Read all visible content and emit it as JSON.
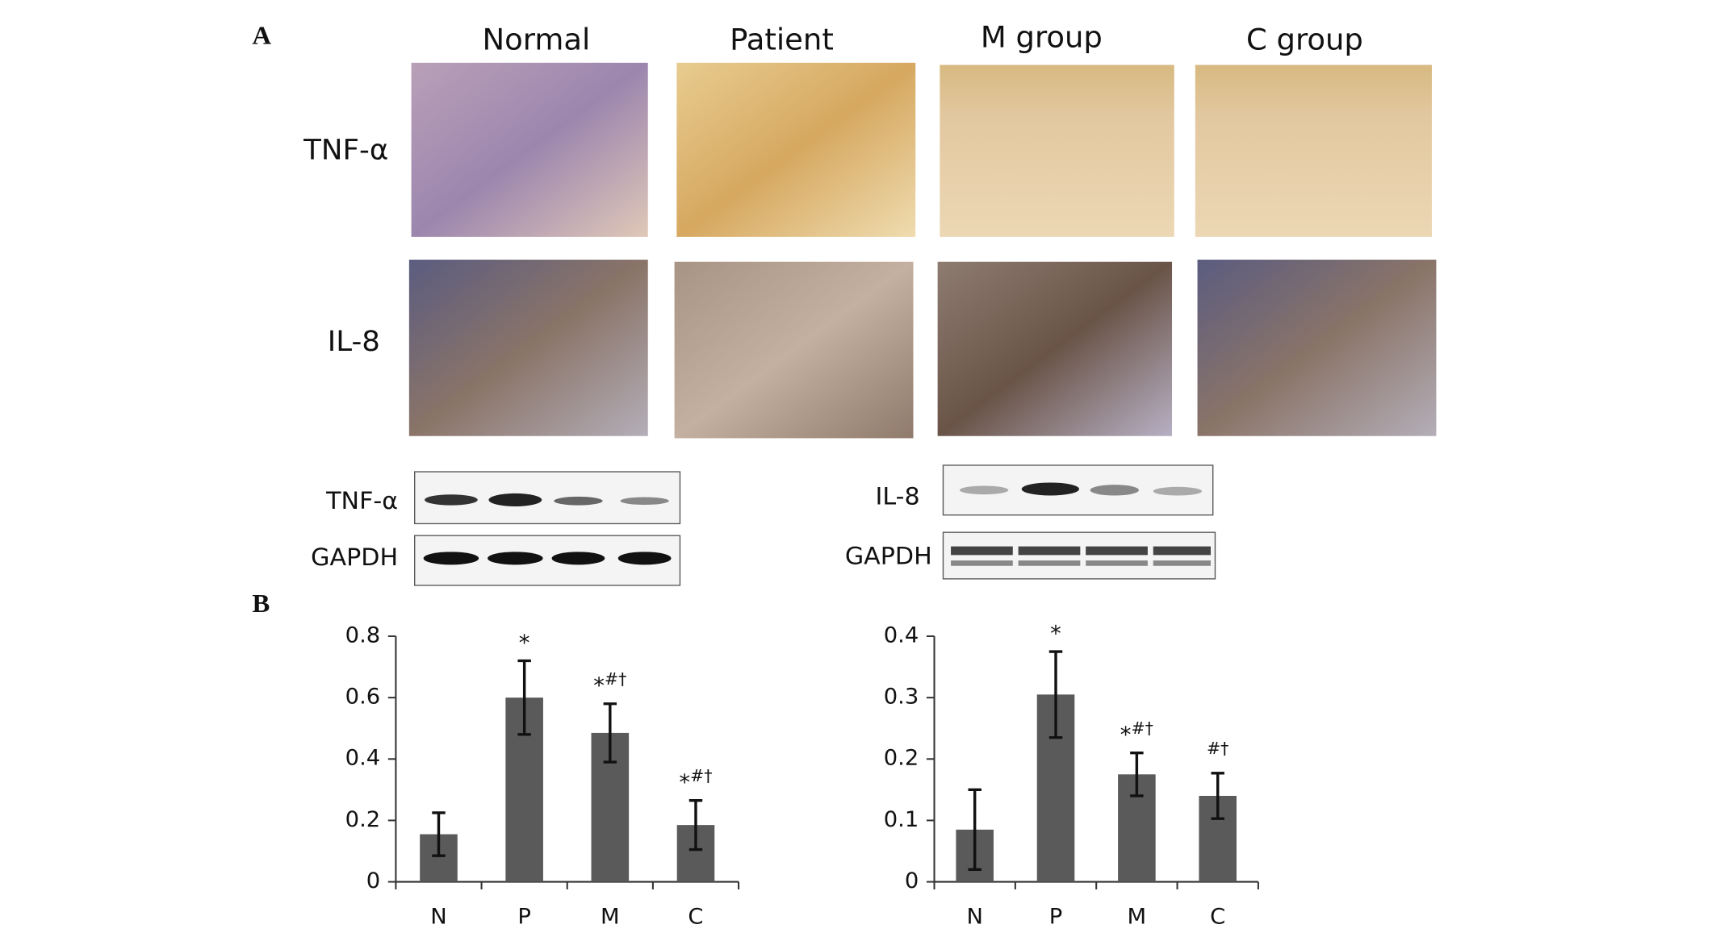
{
  "panels": {
    "a_label": "A",
    "b_label": "B",
    "columns": [
      "Normal",
      "Patient",
      "M group",
      "C group"
    ],
    "rows": [
      "TNF-α",
      "IL-8"
    ],
    "blots_left": [
      "TNF-α",
      "GAPDH"
    ],
    "blots_right": [
      "IL-8",
      "GAPDH"
    ]
  },
  "chart_data": [
    {
      "type": "bar",
      "categories": [
        "N",
        "P",
        "M",
        "C"
      ],
      "values": [
        0.155,
        0.6,
        0.485,
        0.185
      ],
      "errors": [
        0.07,
        0.12,
        0.095,
        0.08
      ],
      "color": "#5a5a5a",
      "ylim": [
        0,
        0.8
      ],
      "yticks": [
        0,
        0.2,
        0.4,
        0.6,
        0.8
      ],
      "annotations": [
        null,
        {
          "main": "*"
        },
        {
          "main": "*",
          "sup": "#†"
        },
        {
          "main": "*",
          "sup": "#†"
        }
      ]
    },
    {
      "type": "bar",
      "categories": [
        "N",
        "P",
        "M",
        "C"
      ],
      "values": [
        0.085,
        0.305,
        0.175,
        0.14
      ],
      "errors": [
        0.065,
        0.07,
        0.035,
        0.037
      ],
      "color": "#5a5a5a",
      "ylim": [
        0,
        0.4
      ],
      "yticks": [
        0,
        0.1,
        0.2,
        0.3,
        0.4
      ],
      "annotations": [
        null,
        {
          "main": "*"
        },
        {
          "main": "*",
          "sup": "#†"
        },
        {
          "sup": "#†"
        }
      ]
    }
  ]
}
